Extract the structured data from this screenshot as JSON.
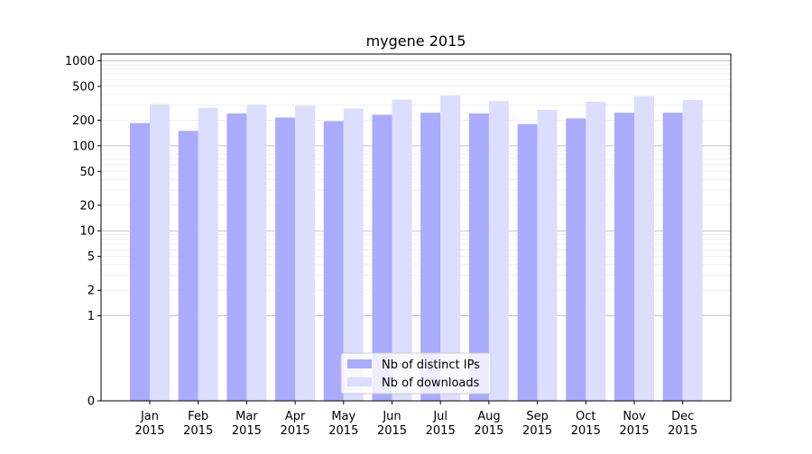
{
  "chart_data": {
    "type": "bar",
    "title": "mygene 2015",
    "xlabel": "",
    "ylabel": "",
    "yscale": "symlog",
    "ylim": [
      0,
      1200
    ],
    "yticks": [
      0,
      1,
      2,
      5,
      10,
      20,
      50,
      100,
      200,
      500,
      1000
    ],
    "ytick_labels": [
      "0",
      "1",
      "2",
      "5",
      "10",
      "20",
      "50",
      "100",
      "200",
      "500",
      "1000"
    ],
    "grid": true,
    "legend_position": "bottom-center",
    "categories": [
      "Jan\n2015",
      "Feb\n2015",
      "Mar\n2015",
      "Apr\n2015",
      "May\n2015",
      "Jun\n2015",
      "Jul\n2015",
      "Aug\n2015",
      "Sep\n2015",
      "Oct\n2015",
      "Nov\n2015",
      "Dec\n2015"
    ],
    "series": [
      {
        "name": "Nb of distinct IPs",
        "color": "#aaaaff",
        "values": [
          185,
          150,
          240,
          215,
          195,
          232,
          245,
          240,
          180,
          210,
          245,
          245
        ]
      },
      {
        "name": "Nb of downloads",
        "color": "#ddddff",
        "values": [
          310,
          280,
          305,
          295,
          275,
          350,
          390,
          335,
          265,
          330,
          385,
          345
        ]
      }
    ]
  }
}
